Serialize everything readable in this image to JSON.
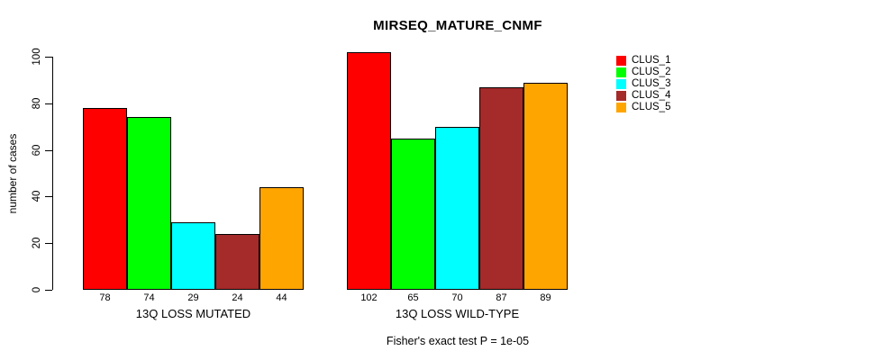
{
  "title": "MIRSEQ_MATURE_CNMF",
  "chart_data": {
    "type": "bar",
    "title": "MIRSEQ_MATURE_CNMF",
    "ylabel": "number of cases",
    "xlabel": "",
    "ylim": [
      0,
      100
    ],
    "yticks": [
      0,
      20,
      40,
      60,
      80,
      100
    ],
    "grid": false,
    "legend_position": "top-right-inside",
    "legend": [
      {
        "label": "CLUS_1",
        "color": "#FF0000"
      },
      {
        "label": "CLUS_2",
        "color": "#00FF00"
      },
      {
        "label": "CLUS_3",
        "color": "#00FFFF"
      },
      {
        "label": "CLUS_4",
        "color": "#A52A2A"
      },
      {
        "label": "CLUS_5",
        "color": "#FFA500"
      }
    ],
    "groups": [
      {
        "label": "13Q LOSS MUTATED",
        "values": [
          78,
          74,
          29,
          24,
          44
        ]
      },
      {
        "label": "13Q LOSS WILD-TYPE",
        "values": [
          102,
          65,
          70,
          87,
          89
        ]
      }
    ],
    "footnote": "Fisher's exact test P = 1e-05"
  }
}
